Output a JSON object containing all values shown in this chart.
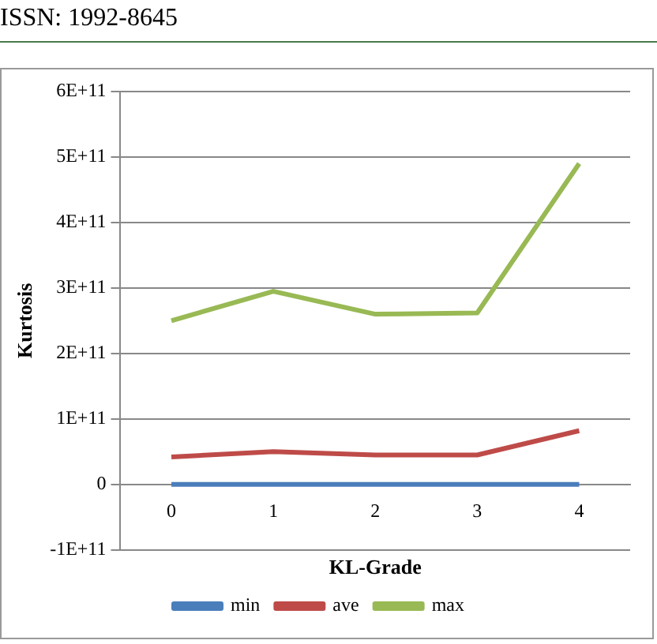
{
  "chart_data": {
    "type": "line",
    "ylabel": "Kurtosis",
    "xlabel": "KL-Grade",
    "annotations": [
      "ISSN: 1992-8645"
    ],
    "categories": [
      "0",
      "1",
      "2",
      "3",
      "4"
    ],
    "series": [
      {
        "name": "min",
        "color": "#4a7ebb",
        "values": [
          0,
          0,
          0,
          0,
          0
        ]
      },
      {
        "name": "ave",
        "color": "#be4b48",
        "values": [
          42000000000,
          50000000000,
          45000000000,
          45000000000,
          82000000000
        ]
      },
      {
        "name": "max",
        "color": "#98b954",
        "values": [
          250000000000,
          295000000000,
          260000000000,
          262000000000,
          490000000000
        ]
      }
    ],
    "ylim": [
      -100000000000,
      600000000000
    ],
    "yticks": [
      {
        "value": -100000000000,
        "label": "-1E+11"
      },
      0,
      {
        "value": 100000000000,
        "label": "1E+11"
      },
      {
        "value": 200000000000,
        "label": "2E+11"
      },
      {
        "value": 300000000000,
        "label": "3E+11"
      },
      {
        "value": 400000000000,
        "label": "4E+11"
      },
      {
        "value": 500000000000,
        "label": "5E+11"
      },
      {
        "value": 600000000000,
        "label": "6E+11"
      }
    ],
    "grid": "y",
    "legend": "bottom",
    "marker": "none",
    "line_style": "solid"
  }
}
